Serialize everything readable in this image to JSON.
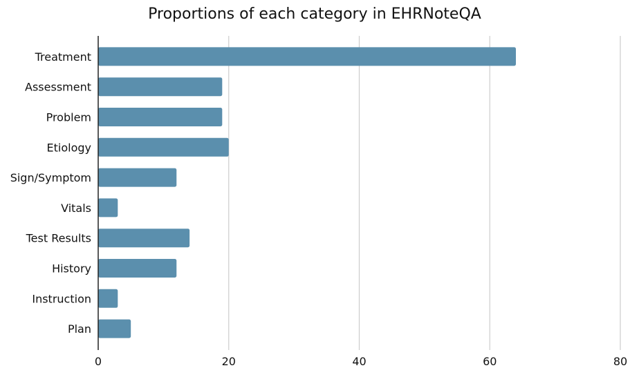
{
  "chart_data": {
    "type": "bar",
    "orientation": "horizontal",
    "title": "Proportions of each category in EHRNoteQA",
    "xlabel": "",
    "ylabel": "",
    "categories": [
      "Treatment",
      "Assessment",
      "Problem",
      "Etiology",
      "Sign/Symptom",
      "Vitals",
      "Test Results",
      "History",
      "Instruction",
      "Plan"
    ],
    "values": [
      64,
      19,
      19,
      20,
      12,
      3,
      14,
      12,
      3,
      5
    ],
    "xlim": [
      0,
      80
    ],
    "xticks": [
      0,
      20,
      40,
      60,
      80
    ],
    "grid": "vertical",
    "bar_color": "#5b8fad",
    "legend": "none"
  }
}
